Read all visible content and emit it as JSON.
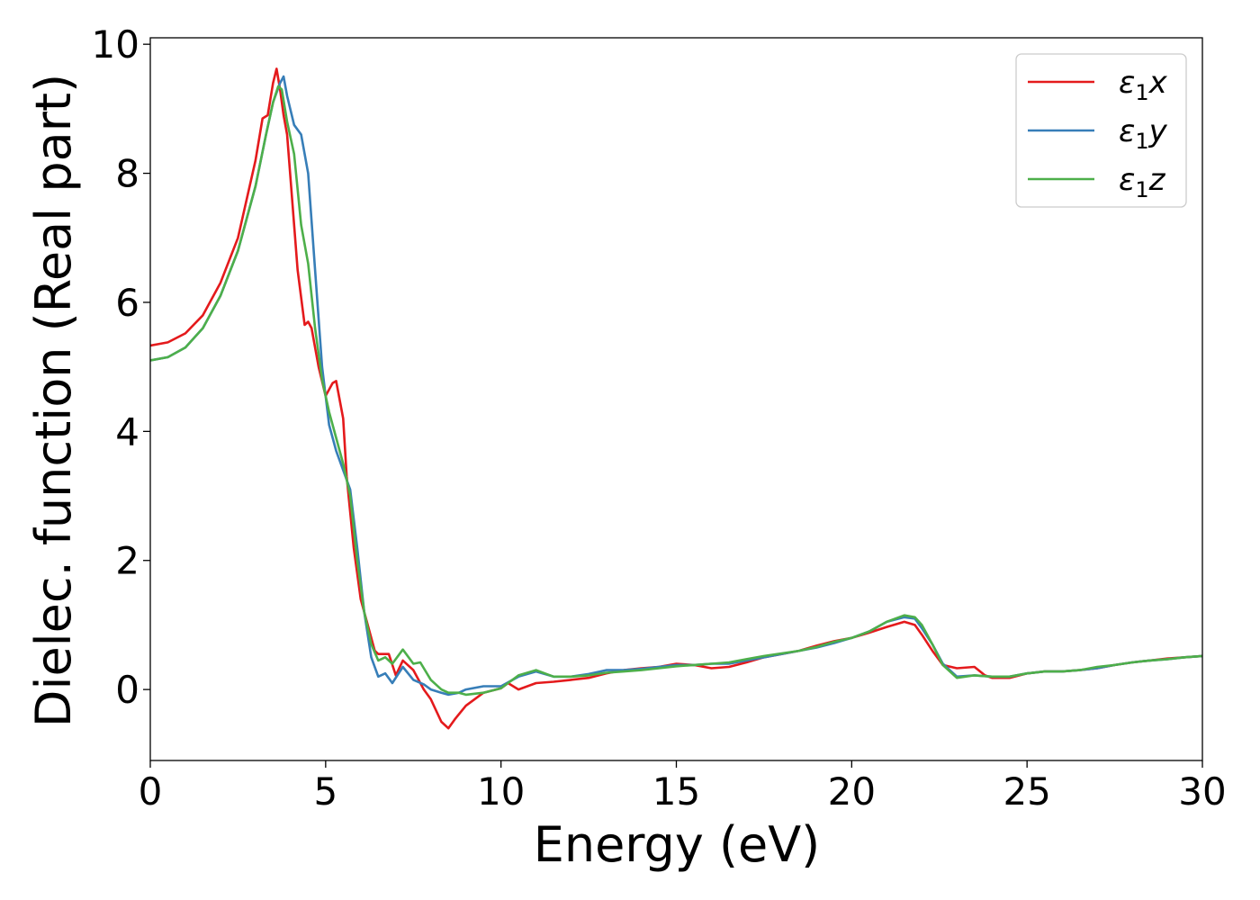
{
  "chart_data": {
    "type": "line",
    "title": "",
    "xlabel": "Energy (eV)",
    "ylabel": "Dielec. function (Real part)",
    "xlim": [
      0,
      30
    ],
    "ylim": [
      -1.1,
      10.1
    ],
    "xticks": [
      0,
      5,
      10,
      15,
      20,
      25,
      30
    ],
    "yticks": [
      0,
      2,
      4,
      6,
      8,
      10
    ],
    "grid": false,
    "legend_position": "top-right",
    "series": [
      {
        "name_base": "ε",
        "name_sub": "1",
        "name_suffix": "x",
        "color": "#e41a1c",
        "x": [
          0,
          0.5,
          1,
          1.5,
          2,
          2.5,
          3,
          3.2,
          3.35,
          3.5,
          3.6,
          3.7,
          3.8,
          3.9,
          4.0,
          4.2,
          4.4,
          4.5,
          4.6,
          4.8,
          5.0,
          5.2,
          5.3,
          5.5,
          5.6,
          5.8,
          6.0,
          6.2,
          6.4,
          6.5,
          6.8,
          7.0,
          7.2,
          7.5,
          7.8,
          8.0,
          8.3,
          8.5,
          8.7,
          9.0,
          9.5,
          10.0,
          10.2,
          10.5,
          11,
          11.5,
          12,
          12.5,
          13,
          13.5,
          14,
          14.5,
          15,
          15.5,
          16,
          16.5,
          17,
          17.5,
          18,
          18.5,
          19,
          19.5,
          20,
          20.5,
          21,
          21.5,
          21.8,
          22,
          22.3,
          22.6,
          23,
          23.5,
          23.8,
          24,
          24.5,
          25,
          25.5,
          26,
          26.5,
          27,
          27.5,
          28,
          28.5,
          29,
          29.5,
          30
        ],
        "y": [
          5.33,
          5.38,
          5.52,
          5.8,
          6.3,
          7.0,
          8.2,
          8.85,
          8.9,
          9.4,
          9.62,
          9.3,
          8.9,
          8.6,
          7.9,
          6.5,
          5.65,
          5.7,
          5.6,
          5.0,
          4.55,
          4.75,
          4.78,
          4.2,
          3.3,
          2.2,
          1.4,
          1.0,
          0.6,
          0.55,
          0.55,
          0.22,
          0.45,
          0.3,
          0.0,
          -0.15,
          -0.5,
          -0.6,
          -0.45,
          -0.25,
          -0.05,
          0.02,
          0.1,
          0.0,
          0.1,
          0.12,
          0.15,
          0.18,
          0.25,
          0.3,
          0.33,
          0.35,
          0.4,
          0.38,
          0.33,
          0.35,
          0.42,
          0.5,
          0.55,
          0.6,
          0.68,
          0.75,
          0.8,
          0.88,
          0.97,
          1.05,
          1.0,
          0.85,
          0.6,
          0.38,
          0.33,
          0.35,
          0.22,
          0.18,
          0.18,
          0.25,
          0.28,
          0.28,
          0.3,
          0.33,
          0.38,
          0.42,
          0.45,
          0.48,
          0.5,
          0.52
        ]
      },
      {
        "name_base": "ε",
        "name_sub": "1",
        "name_suffix": "y",
        "color": "#377eb8",
        "x": [
          0,
          0.5,
          1,
          1.5,
          2,
          2.5,
          3,
          3.3,
          3.5,
          3.7,
          3.8,
          3.9,
          4.1,
          4.3,
          4.5,
          4.7,
          4.9,
          5.1,
          5.3,
          5.5,
          5.7,
          5.9,
          6.1,
          6.3,
          6.5,
          6.7,
          6.9,
          7.2,
          7.5,
          7.8,
          8.0,
          8.3,
          8.5,
          8.8,
          9.0,
          9.5,
          10.0,
          10.5,
          11,
          11.5,
          12,
          12.5,
          13,
          13.5,
          14,
          14.5,
          15,
          15.5,
          16,
          16.5,
          17,
          17.5,
          18,
          18.5,
          19,
          19.5,
          20,
          20.5,
          21,
          21.5,
          21.8,
          22,
          22.3,
          22.6,
          23,
          23.5,
          24,
          24.5,
          25,
          25.5,
          26,
          26.5,
          27,
          27.5,
          28,
          28.5,
          29,
          29.5,
          30
        ],
        "y": [
          5.1,
          5.15,
          5.3,
          5.6,
          6.1,
          6.8,
          7.8,
          8.6,
          9.1,
          9.4,
          9.5,
          9.2,
          8.75,
          8.6,
          8.0,
          6.5,
          5.0,
          4.1,
          3.7,
          3.4,
          3.1,
          2.2,
          1.2,
          0.5,
          0.2,
          0.25,
          0.1,
          0.35,
          0.15,
          0.08,
          0.0,
          -0.05,
          -0.08,
          -0.05,
          0.0,
          0.05,
          0.05,
          0.2,
          0.28,
          0.2,
          0.2,
          0.24,
          0.3,
          0.3,
          0.32,
          0.35,
          0.38,
          0.38,
          0.4,
          0.4,
          0.45,
          0.5,
          0.55,
          0.6,
          0.65,
          0.72,
          0.8,
          0.9,
          1.05,
          1.12,
          1.1,
          0.95,
          0.7,
          0.4,
          0.2,
          0.22,
          0.2,
          0.2,
          0.25,
          0.28,
          0.28,
          0.3,
          0.33,
          0.38,
          0.42,
          0.45,
          0.47,
          0.5,
          0.52
        ]
      },
      {
        "name_base": "ε",
        "name_sub": "1",
        "name_suffix": "z",
        "color": "#4daf4a",
        "x": [
          0,
          0.5,
          1,
          1.5,
          2,
          2.5,
          3,
          3.3,
          3.5,
          3.65,
          3.75,
          3.9,
          4.1,
          4.3,
          4.5,
          4.7,
          4.9,
          5.1,
          5.3,
          5.5,
          5.7,
          5.9,
          6.1,
          6.3,
          6.5,
          6.7,
          6.9,
          7.2,
          7.5,
          7.7,
          8.0,
          8.3,
          8.5,
          8.8,
          9.0,
          9.5,
          10.0,
          10.5,
          11,
          11.5,
          12,
          12.5,
          13,
          13.5,
          14,
          14.5,
          15,
          15.5,
          16,
          16.5,
          17,
          17.5,
          18,
          18.5,
          19,
          19.5,
          20,
          20.5,
          21,
          21.5,
          21.8,
          22,
          22.3,
          22.6,
          23,
          23.5,
          24,
          24.5,
          25,
          25.5,
          26,
          26.5,
          27,
          27.5,
          28,
          28.5,
          29,
          29.5,
          30
        ],
        "y": [
          5.1,
          5.15,
          5.3,
          5.6,
          6.1,
          6.8,
          7.8,
          8.6,
          9.1,
          9.35,
          9.3,
          8.8,
          8.3,
          7.2,
          6.6,
          5.6,
          4.8,
          4.3,
          3.9,
          3.5,
          3.0,
          2.0,
          1.2,
          0.7,
          0.45,
          0.5,
          0.4,
          0.62,
          0.4,
          0.42,
          0.15,
          0.0,
          -0.05,
          -0.05,
          -0.08,
          -0.05,
          0.02,
          0.22,
          0.3,
          0.2,
          0.2,
          0.22,
          0.26,
          0.28,
          0.3,
          0.33,
          0.36,
          0.38,
          0.4,
          0.42,
          0.47,
          0.52,
          0.56,
          0.6,
          0.66,
          0.74,
          0.8,
          0.9,
          1.05,
          1.15,
          1.12,
          1.0,
          0.7,
          0.38,
          0.18,
          0.22,
          0.2,
          0.2,
          0.25,
          0.28,
          0.28,
          0.3,
          0.35,
          0.38,
          0.42,
          0.45,
          0.47,
          0.5,
          0.52
        ]
      }
    ]
  }
}
